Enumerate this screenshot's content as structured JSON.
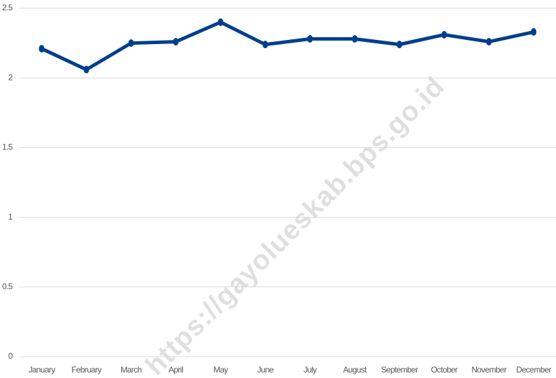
{
  "chart_data": {
    "type": "line",
    "categories": [
      "January",
      "February",
      "March",
      "April",
      "May",
      "June",
      "July",
      "August",
      "September",
      "October",
      "November",
      "December"
    ],
    "series": [
      {
        "name": null,
        "color": "#003f8c",
        "values": [
          2.21,
          2.06,
          2.25,
          2.26,
          2.4,
          2.24,
          2.28,
          2.28,
          2.24,
          2.31,
          2.26,
          2.33
        ]
      }
    ],
    "ylim": [
      0,
      2.5
    ],
    "yticks": [
      0,
      0.5,
      1,
      1.5,
      2,
      2.5
    ],
    "grid": true,
    "watermark": "https://gayolueskab.bps.go.id"
  }
}
